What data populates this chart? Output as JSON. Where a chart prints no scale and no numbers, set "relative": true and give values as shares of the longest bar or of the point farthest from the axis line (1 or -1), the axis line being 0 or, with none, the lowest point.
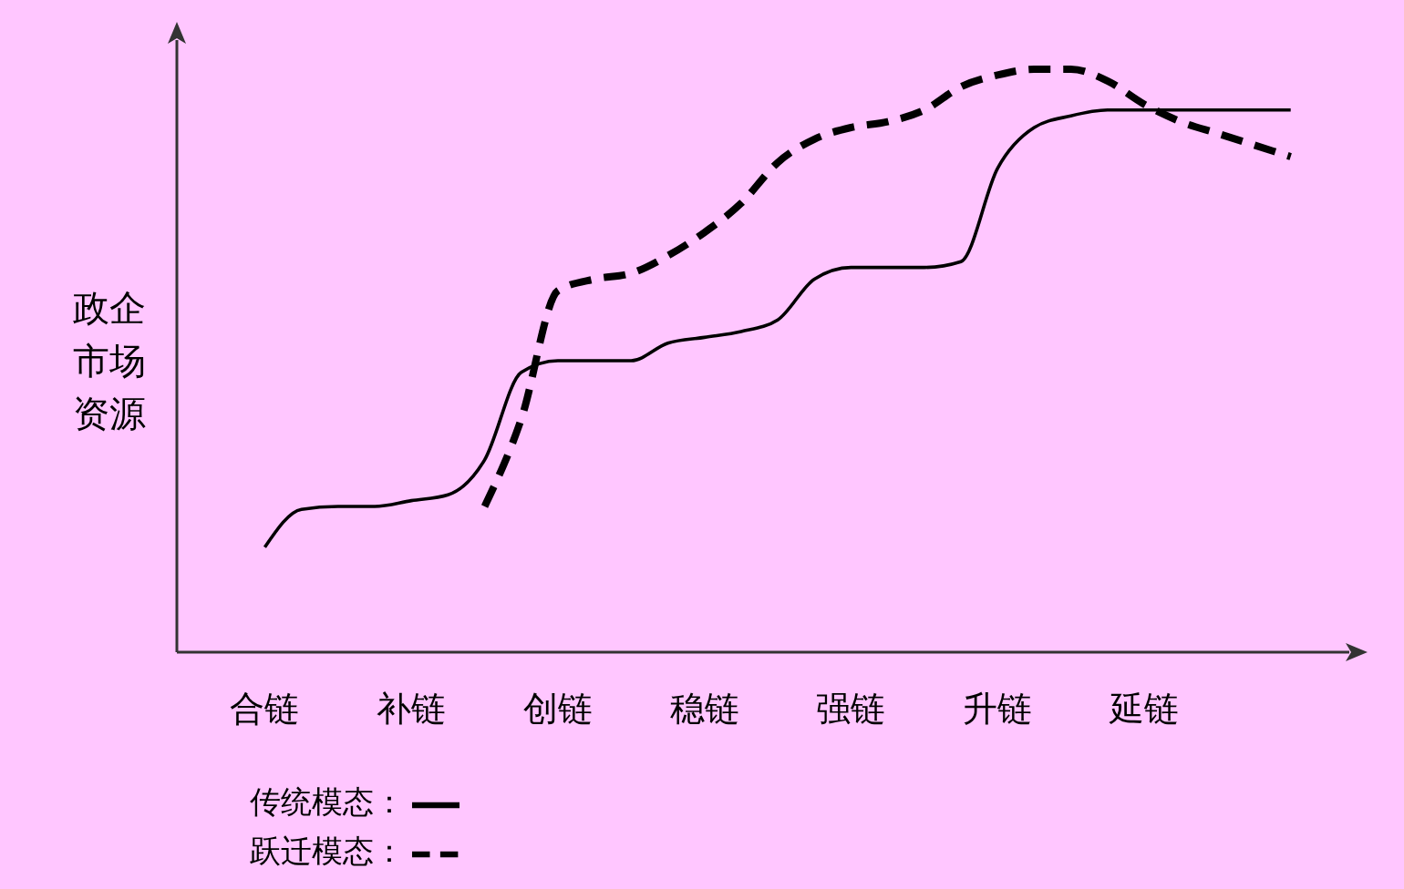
{
  "chart_data": {
    "type": "line",
    "relative": true,
    "ylabel": "政企市场资源",
    "legend": "bottom",
    "grid": false,
    "categories": [
      "合链",
      null,
      null,
      null,
      "补链",
      null,
      null,
      null,
      "创链",
      null,
      null,
      null,
      "稳链",
      null,
      null,
      null,
      "强链",
      null,
      null,
      null,
      "升链",
      null,
      null,
      null,
      "延链",
      null,
      null,
      null,
      null
    ],
    "series": [
      {
        "name": "传统模态：",
        "color": "#000000",
        "line_style": "solid",
        "values": [
          0.18,
          0.245,
          0.25,
          0.25,
          0.26,
          0.27,
          0.33,
          0.48,
          0.5,
          0.5,
          0.5,
          0.53,
          0.54,
          0.55,
          0.57,
          0.64,
          0.66,
          0.66,
          0.66,
          0.67,
          0.83,
          0.9,
          0.92,
          0.93,
          0.93,
          0.93,
          0.93,
          0.93,
          0.93
        ]
      },
      {
        "name": "跃迁模态：",
        "color": "#000000",
        "line_style": "dashed",
        "values": [
          null,
          null,
          null,
          null,
          null,
          null,
          0.25,
          0.4,
          0.62,
          0.64,
          0.65,
          0.68,
          0.72,
          0.77,
          0.84,
          0.88,
          0.9,
          0.91,
          0.93,
          0.97,
          0.99,
          1,
          1.0,
          0.98,
          0.94,
          0.91,
          0.89,
          0.87,
          0.85
        ]
      }
    ]
  }
}
